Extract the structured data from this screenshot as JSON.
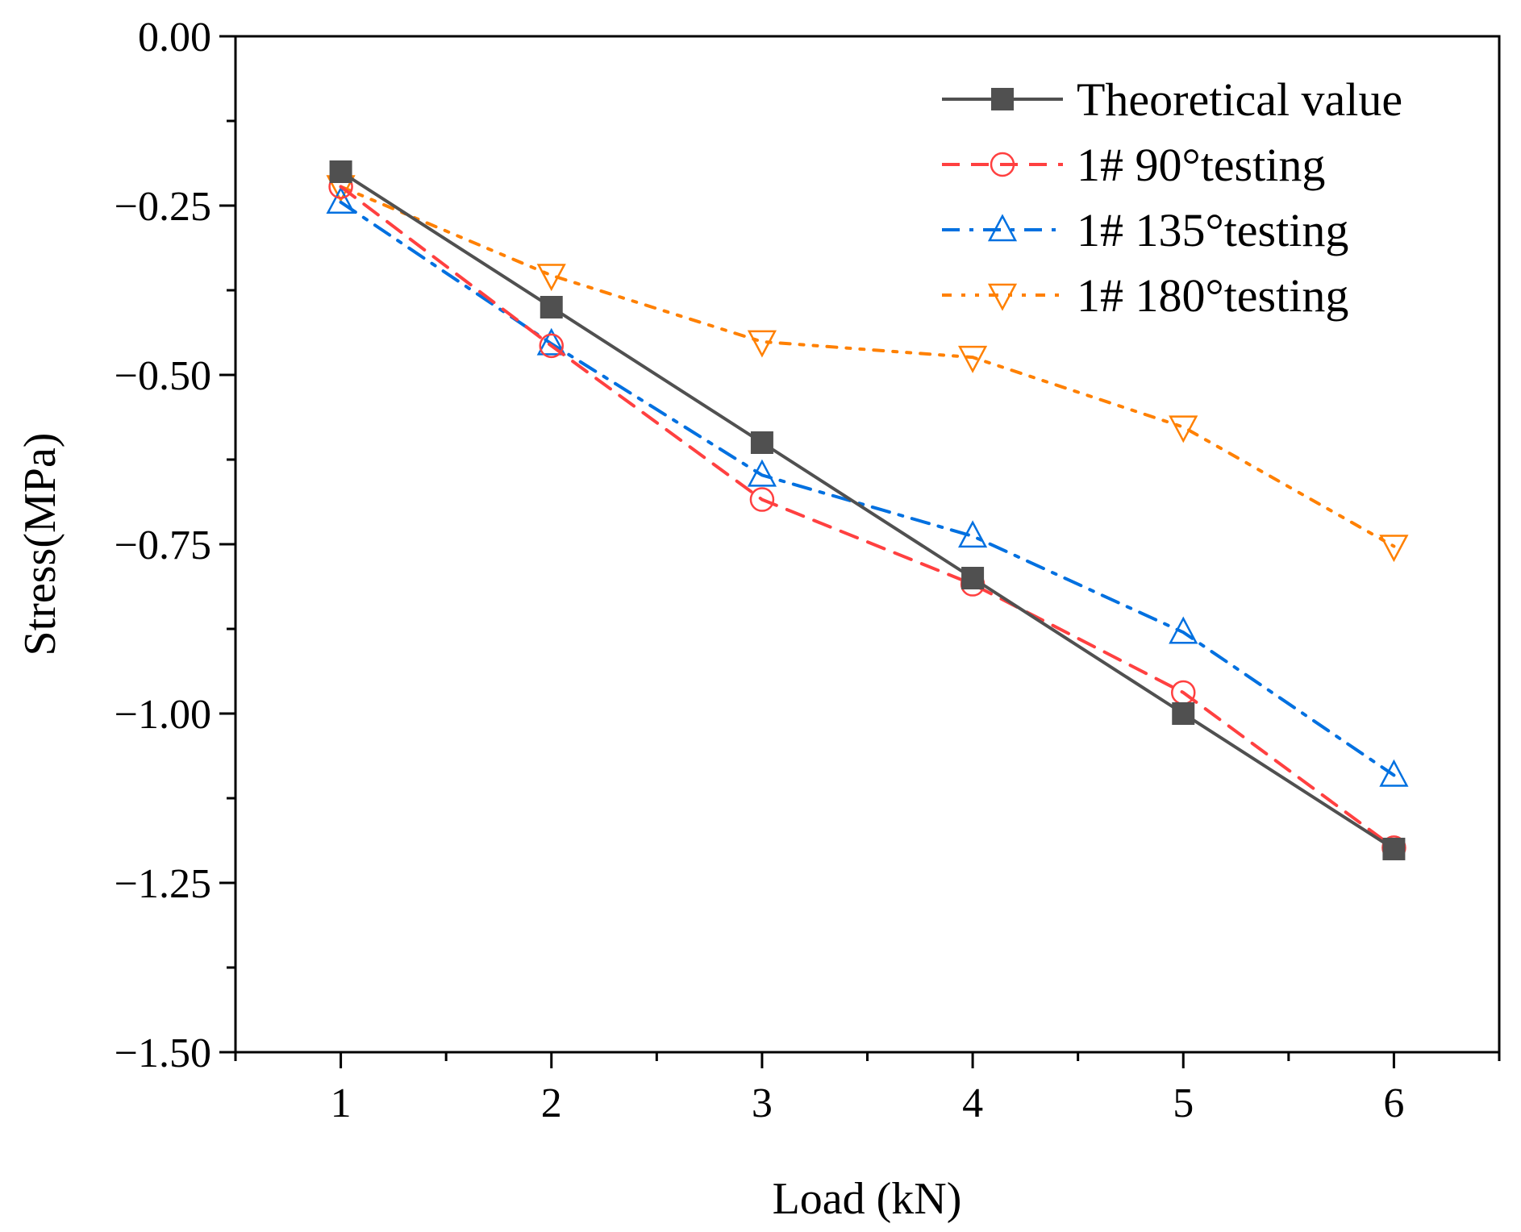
{
  "chart_data": {
    "type": "line",
    "title": "",
    "xlabel": "Load (kN)",
    "ylabel": "Stress(MPa)",
    "xlim": [
      0.5,
      6.5
    ],
    "ylim": [
      -1.5,
      0.0
    ],
    "x": [
      1,
      2,
      3,
      4,
      5,
      6
    ],
    "x_ticks": [
      1,
      2,
      3,
      4,
      5,
      6
    ],
    "x_tick_labels": [
      "1",
      "2",
      "3",
      "4",
      "5",
      "6"
    ],
    "y_ticks": [
      0,
      -0.25,
      -0.5,
      -0.75,
      -1.0,
      -1.25,
      -1.5
    ],
    "y_tick_labels": [
      "0.00",
      "−0.25",
      "−0.50",
      "−0.75",
      "−1.00",
      "−1.25",
      "−1.50"
    ],
    "grid": false,
    "legend_position": "top-right",
    "series": [
      {
        "name": "Theoretical value",
        "color": "#505050",
        "marker": "square",
        "dash": "solid",
        "values": [
          -0.2,
          -0.4,
          -0.6,
          -0.8,
          -1.0,
          -1.2
        ]
      },
      {
        "name": "1# 90°testing",
        "color": "#ff4040",
        "marker": "circle",
        "dash": "dash",
        "values": [
          -0.222,
          -0.457,
          -0.684,
          -0.809,
          -0.969,
          -1.198
        ]
      },
      {
        "name": "1# 135°testing",
        "color": "#0070e0",
        "marker": "triangle-up",
        "dash": "dashdot",
        "values": [
          -0.245,
          -0.454,
          -0.648,
          -0.738,
          -0.88,
          -1.091
        ]
      },
      {
        "name": "1# 180°testing",
        "color": "#ff8000",
        "marker": "triangle-down",
        "dash": "dashdotdot",
        "values": [
          -0.222,
          -0.353,
          -0.451,
          -0.474,
          -0.577,
          -0.753
        ]
      }
    ]
  }
}
